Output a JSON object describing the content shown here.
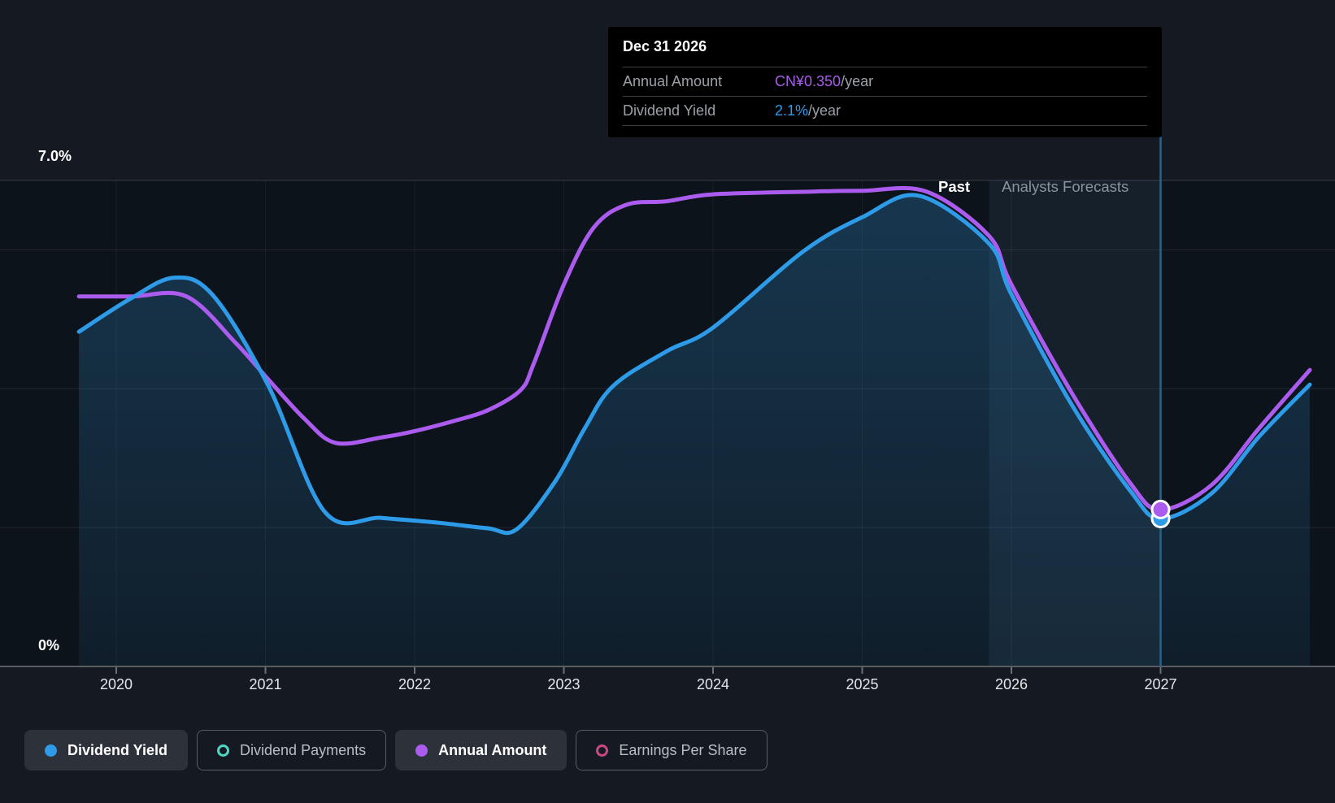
{
  "axis": {
    "y_top_label": "7.0%",
    "y_bottom_label": "0%",
    "years": [
      "2020",
      "2021",
      "2022",
      "2023",
      "2024",
      "2025",
      "2026",
      "2027"
    ]
  },
  "regions": {
    "past_label": "Past",
    "forecast_label": "Analysts Forecasts"
  },
  "tooltip": {
    "title": "Dec 31 2026",
    "rows": [
      {
        "label": "Annual Amount",
        "value": "CN¥0.350",
        "suffix": "/year",
        "color": "#A85CEC"
      },
      {
        "label": "Dividend Yield",
        "value": "2.1%",
        "suffix": "/year",
        "color": "#2E9BE8"
      }
    ]
  },
  "legend": [
    {
      "label": "Dividend Yield",
      "color": "#2E9BE8",
      "marker": "filled",
      "active": true
    },
    {
      "label": "Dividend Payments",
      "color": "#4FD5C4",
      "marker": "ring",
      "active": false
    },
    {
      "label": "Annual Amount",
      "color": "#AB5CEF",
      "marker": "filled",
      "active": true
    },
    {
      "label": "Earnings Per Share",
      "color": "#C9487F",
      "marker": "ring",
      "active": false
    }
  ],
  "colors": {
    "background": "#151A22",
    "plot_background": "#0D131B",
    "dividend_yield_line": "#2E9BE8",
    "annual_amount_line": "#AB5CEF",
    "area_fill": "#2B7DB4",
    "forecast_band": "#74A9D7",
    "hover_line": "#2C6287",
    "gridline": "#FFFFFF",
    "axis_line": "#575D63",
    "tooltip_background": "#000000"
  },
  "chart_data": {
    "type": "line",
    "x_axis": {
      "ticks": [
        2020,
        2021,
        2022,
        2023,
        2024,
        2025,
        2026,
        2027
      ],
      "range": [
        2019.75,
        2028.0
      ]
    },
    "y_axis": {
      "unit": "%",
      "range": [
        0,
        7.0
      ],
      "gridlines_pct": [
        2,
        4,
        6,
        7
      ],
      "top_label": "7.0%",
      "bottom_label": "0%"
    },
    "forecast_start": 2025.85,
    "hover": {
      "date": "Dec 31 2026",
      "year": 2027.0,
      "annual_amount": "CN¥0.350/year",
      "dividend_yield_pct": 2.1,
      "markers": [
        {
          "series": "Annual Amount",
          "year": 2027.0,
          "value": 2.26
        },
        {
          "series": "Dividend Yield",
          "year": 2027.0,
          "value": 2.13
        }
      ]
    },
    "series": [
      {
        "name": "Annual Amount",
        "color": "#AB5CEF",
        "area_fill": false,
        "points": [
          [
            2019.75,
            5.33
          ],
          [
            2020.1,
            5.33
          ],
          [
            2020.47,
            5.33
          ],
          [
            2020.8,
            4.66
          ],
          [
            2021.0,
            4.18
          ],
          [
            2021.26,
            3.57
          ],
          [
            2021.47,
            3.22
          ],
          [
            2021.78,
            3.3
          ],
          [
            2022.0,
            3.39
          ],
          [
            2022.27,
            3.54
          ],
          [
            2022.49,
            3.69
          ],
          [
            2022.71,
            3.98
          ],
          [
            2022.8,
            4.37
          ],
          [
            2023.0,
            5.5
          ],
          [
            2023.2,
            6.32
          ],
          [
            2023.42,
            6.65
          ],
          [
            2023.69,
            6.7
          ],
          [
            2024.0,
            6.8
          ],
          [
            2024.67,
            6.84
          ],
          [
            2025.0,
            6.85
          ],
          [
            2025.43,
            6.84
          ],
          [
            2025.85,
            6.2
          ],
          [
            2026.0,
            5.5
          ],
          [
            2026.41,
            3.92
          ],
          [
            2026.8,
            2.63
          ],
          [
            2027.0,
            2.26
          ],
          [
            2027.34,
            2.61
          ],
          [
            2027.66,
            3.43
          ],
          [
            2028.0,
            4.27
          ]
        ]
      },
      {
        "name": "Dividend Yield",
        "color": "#2E9BE8",
        "area_fill": true,
        "points": [
          [
            2019.75,
            4.82
          ],
          [
            2020.09,
            5.29
          ],
          [
            2020.39,
            5.6
          ],
          [
            2020.65,
            5.34
          ],
          [
            2021.02,
            4.04
          ],
          [
            2021.4,
            2.22
          ],
          [
            2021.78,
            2.14
          ],
          [
            2022.16,
            2.07
          ],
          [
            2022.49,
            1.99
          ],
          [
            2022.68,
            1.97
          ],
          [
            2022.94,
            2.66
          ],
          [
            2023.14,
            3.43
          ],
          [
            2023.33,
            4.04
          ],
          [
            2023.69,
            4.54
          ],
          [
            2024.0,
            4.88
          ],
          [
            2024.6,
            5.97
          ],
          [
            2025.0,
            6.47
          ],
          [
            2025.38,
            6.78
          ],
          [
            2025.85,
            6.09
          ],
          [
            2026.0,
            5.36
          ],
          [
            2026.41,
            3.75
          ],
          [
            2026.8,
            2.52
          ],
          [
            2027.0,
            2.13
          ],
          [
            2027.34,
            2.49
          ],
          [
            2027.66,
            3.31
          ],
          [
            2028.0,
            4.06
          ]
        ]
      }
    ]
  }
}
